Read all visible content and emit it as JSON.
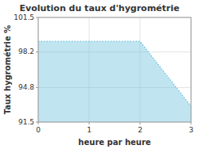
{
  "chart_data": {
    "type": "area",
    "title": "Evolution du taux d'hygrométrie",
    "xlabel": "heure par heure",
    "ylabel": "Taux hygrométrie %",
    "x": [
      0,
      2,
      3
    ],
    "values": [
      99.2,
      99.2,
      93.0
    ],
    "color": "#74c6e0",
    "line_style": "dotted",
    "xlim": [
      0,
      3
    ],
    "ylim": [
      91.5,
      101.5
    ],
    "xticks": [
      0,
      1,
      2,
      3
    ],
    "yticks": [
      91.5,
      94.8,
      98.2,
      101.5
    ],
    "grid": true
  }
}
